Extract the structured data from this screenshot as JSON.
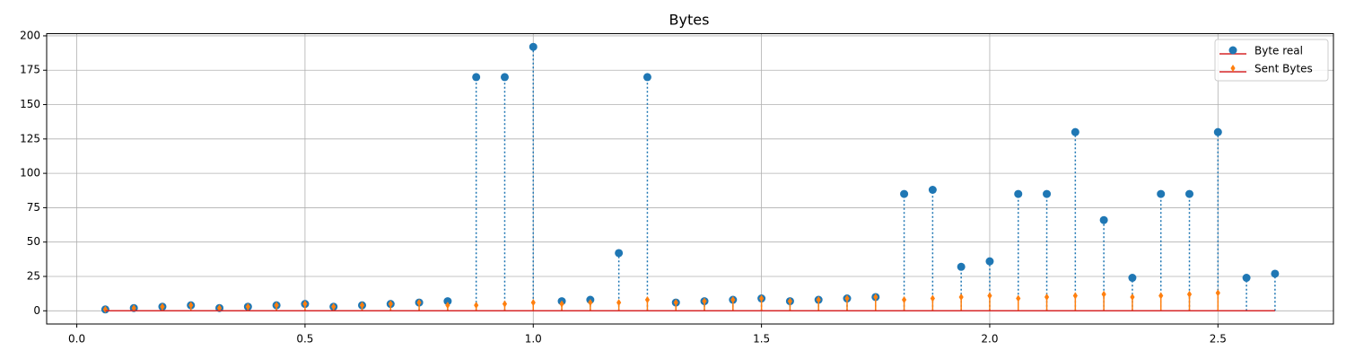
{
  "chart_data": {
    "type": "stem",
    "title": "Bytes",
    "x": [
      0.0625,
      0.125,
      0.1875,
      0.25,
      0.3125,
      0.375,
      0.4375,
      0.5,
      0.5625,
      0.625,
      0.6875,
      0.75,
      0.8125,
      0.875,
      0.9375,
      1.0,
      1.0625,
      1.125,
      1.1875,
      1.25,
      1.3125,
      1.375,
      1.4375,
      1.5,
      1.5625,
      1.625,
      1.6875,
      1.75,
      1.8125,
      1.875,
      1.9375,
      2.0,
      2.0625,
      2.125,
      2.1875,
      2.25,
      2.3125,
      2.375,
      2.4375,
      2.5,
      2.5625,
      2.625
    ],
    "series": [
      {
        "name": "Byte real",
        "color": "#1f77b4",
        "baseline_color": "#d62728",
        "marker": "circle",
        "linestyle": "dotted",
        "values": [
          1,
          2,
          3,
          4,
          2,
          3,
          4,
          5,
          3,
          4,
          5,
          6,
          7,
          170,
          170,
          192,
          7,
          8,
          42,
          170,
          6,
          7,
          8,
          9,
          7,
          8,
          9,
          10,
          85,
          88,
          32,
          36,
          85,
          85,
          130,
          66,
          24,
          85,
          85,
          130,
          24,
          27
        ]
      },
      {
        "name": "Sent Bytes",
        "color": "#ff7f0e",
        "baseline_color": "#d62728",
        "marker": "diamond",
        "linestyle": "solid",
        "values": [
          1,
          2,
          3,
          4,
          2,
          3,
          4,
          5,
          3,
          4,
          5,
          6,
          4,
          4,
          5,
          6,
          5,
          6,
          6,
          8,
          6,
          7,
          8,
          9,
          7,
          8,
          9,
          10,
          8,
          9,
          10,
          11,
          9,
          10,
          11,
          12,
          10,
          11,
          12,
          13,
          null,
          null
        ]
      }
    ],
    "xlim": [
      -0.066,
      2.753
    ],
    "ylim": [
      -9.6,
      201.6
    ],
    "xticks": [
      {
        "value": 0,
        "label": "0.0"
      },
      {
        "value": 0.5,
        "label": "0.5"
      },
      {
        "value": 1,
        "label": "1.0"
      },
      {
        "value": 1.5,
        "label": "1.5"
      },
      {
        "value": 2,
        "label": "2.0"
      },
      {
        "value": 2.5,
        "label": "2.5"
      }
    ],
    "yticks": [
      0,
      25,
      50,
      75,
      100,
      125,
      150,
      175,
      200
    ],
    "grid": true,
    "legend": "upper right"
  }
}
